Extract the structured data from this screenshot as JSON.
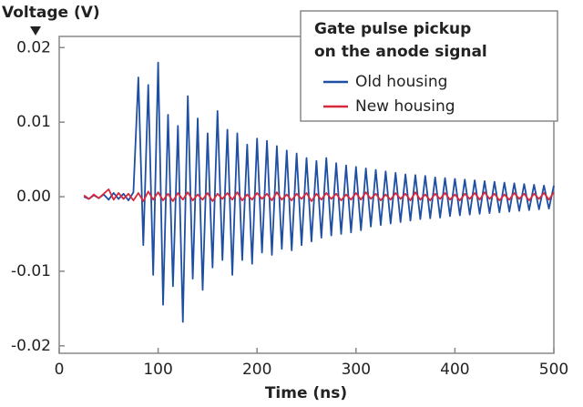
{
  "chart_data": {
    "type": "line",
    "y_label": "Voltage (V)",
    "x_label": "Time (ns)",
    "legend_title": [
      "Gate pulse pickup",
      "on the anode signal"
    ],
    "legend": "upper right",
    "grid": false,
    "xlim": [
      0,
      500
    ],
    "xticks": [
      0,
      100,
      200,
      300,
      400,
      500
    ],
    "ylim": [
      -0.021,
      0.0215
    ],
    "yticks": [
      -0.02,
      -0.01,
      {
        "value": 0,
        "label": "0.00"
      },
      0.01,
      0.02
    ],
    "x": [
      25,
      30,
      35,
      40,
      45,
      50,
      55,
      60,
      65,
      70,
      75,
      80,
      85,
      90,
      95,
      100,
      105,
      110,
      115,
      120,
      125,
      130,
      135,
      140,
      145,
      150,
      155,
      160,
      165,
      170,
      175,
      180,
      185,
      190,
      195,
      200,
      205,
      210,
      215,
      220,
      225,
      230,
      235,
      240,
      245,
      250,
      255,
      260,
      265,
      270,
      275,
      280,
      285,
      290,
      295,
      300,
      305,
      310,
      315,
      320,
      325,
      330,
      335,
      340,
      345,
      350,
      355,
      360,
      365,
      370,
      375,
      380,
      385,
      390,
      395,
      400,
      405,
      410,
      415,
      420,
      425,
      430,
      435,
      440,
      445,
      450,
      455,
      460,
      465,
      470,
      475,
      480,
      485,
      490,
      495,
      500
    ],
    "series": [
      {
        "name": "Old housing",
        "color": "#1f4fa3",
        "values": [
          0,
          -0.0003,
          0.0002,
          -0.0002,
          0.0003,
          -0.0004,
          0.0005,
          -0.0003,
          0.0004,
          -0.0005,
          0.0006,
          0.016,
          -0.0065,
          0.015,
          -0.0105,
          0.018,
          -0.0145,
          0.011,
          -0.012,
          0.0095,
          -0.0168,
          0.0135,
          -0.011,
          0.0105,
          -0.0125,
          0.0085,
          -0.0095,
          0.0115,
          -0.0085,
          0.009,
          -0.0105,
          0.0085,
          -0.0085,
          0.007,
          -0.009,
          0.0078,
          -0.0075,
          0.0075,
          -0.0078,
          0.0068,
          -0.007,
          0.0062,
          -0.0072,
          0.0058,
          -0.0065,
          0.0052,
          -0.006,
          0.0048,
          -0.0055,
          0.0052,
          -0.0052,
          0.0045,
          -0.005,
          0.0042,
          -0.0048,
          0.004,
          -0.0045,
          0.0038,
          -0.004,
          0.0036,
          -0.0038,
          0.0034,
          -0.0036,
          0.0032,
          -0.0034,
          0.003,
          -0.0032,
          0.0029,
          -0.003,
          0.0028,
          -0.0029,
          0.0026,
          -0.0028,
          0.0025,
          -0.0026,
          0.0024,
          -0.0025,
          0.0023,
          -0.0024,
          0.0022,
          -0.0023,
          0.0021,
          -0.0022,
          0.002,
          -0.0021,
          0.0019,
          -0.002,
          0.0018,
          -0.0019,
          0.0017,
          -0.0018,
          0.0016,
          -0.0017,
          0.0015,
          -0.0016,
          0.0015
        ]
      },
      {
        "name": "New housing",
        "color": "#d8283c",
        "values": [
          0.0002,
          -0.0003,
          0.0003,
          -0.0002,
          0.0004,
          0.001,
          -0.0004,
          0.0005,
          -0.0003,
          0.0004,
          -0.0005,
          0.0005,
          -0.0006,
          0.0007,
          -0.0004,
          0.0006,
          -0.0005,
          0.0004,
          -0.0006,
          0.0005,
          -0.0004,
          0.0006,
          -0.0005,
          0.0003,
          -0.0004,
          0.0005,
          -0.0006,
          0.0004,
          -0.0003,
          0.0005,
          -0.0004,
          0.0006,
          -0.0005,
          0.0003,
          -0.0004,
          0.0005,
          -0.0003,
          0.0004,
          -0.0005,
          0.0006,
          -0.0004,
          0.0003,
          -0.0005,
          0.0004,
          -0.0003,
          0.0005,
          -0.0006,
          0.0004,
          -0.0004,
          0.0005,
          -0.0003,
          0.0004,
          -0.0005,
          0.0003,
          -0.0004,
          0.0005,
          -0.0004,
          0.0006,
          -0.0003,
          0.0004,
          -0.0005,
          0.0003,
          -0.0004,
          0.0005,
          -0.0003,
          0.0004,
          -0.0005,
          0.0006,
          -0.0004,
          0.0003,
          -0.0005,
          0.0004,
          -0.0003,
          0.0005,
          -0.0004,
          0.0003,
          -0.0005,
          0.0004,
          -0.0003,
          0.0005,
          -0.0004,
          0.0006,
          -0.0003,
          0.0004,
          -0.0005,
          0.0003,
          -0.0004,
          0.0005,
          -0.0003,
          0.0004,
          -0.0005,
          0.0004,
          -0.0003,
          0.0005,
          -0.0004,
          0.0006
        ]
      }
    ]
  }
}
